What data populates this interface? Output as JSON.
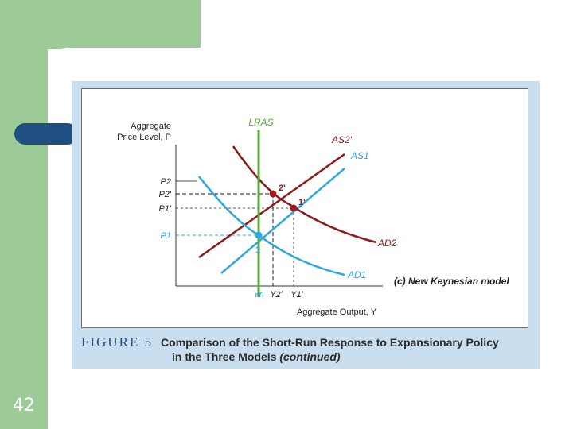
{
  "slide": {
    "number": "42"
  },
  "figure": {
    "caption_label": "FIGURE 5",
    "caption_title": "Comparison of the Short-Run Response to Expansionary Policy",
    "caption_line2": "in the Three Models",
    "caption_suffix": "(continued)"
  },
  "diagram": {
    "y_axis_label_line1": "Aggregate",
    "y_axis_label_line2": "Price Level, P",
    "x_axis_label": "Aggregate Output, Y",
    "panel_label": "(c) New Keynesian model",
    "curves": {
      "lras": "LRAS",
      "as2": "AS2'",
      "as1": "AS1",
      "ad2": "AD2",
      "ad1": "AD1"
    },
    "price_labels": [
      "P2",
      "P2'",
      "P1'",
      "P1"
    ],
    "output_labels": [
      "Yn",
      "Y2'",
      "Y1'"
    ],
    "points": [
      "1",
      "2'",
      "1'"
    ],
    "colors": {
      "lras": "#5aa83c",
      "red_curve": "#8b1c1c",
      "blue_curve": "#2ea9e0",
      "axis": "#333333"
    }
  }
}
